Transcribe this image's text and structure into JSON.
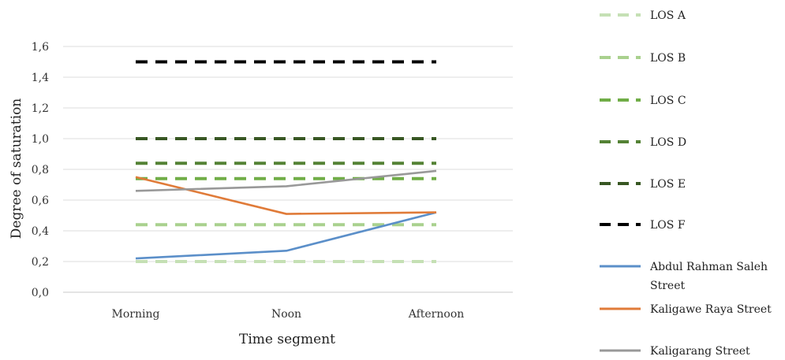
{
  "chart_data": {
    "type": "line",
    "title": "",
    "xlabel": "Time segment",
    "ylabel": "Degree of saturation",
    "categories": [
      "Morning",
      "Noon",
      "Afternoon"
    ],
    "ylim": [
      0,
      1.6
    ],
    "yticks": [
      "0,0",
      "0,2",
      "0,4",
      "0,6",
      "0,8",
      "1,0",
      "1,2",
      "1,4",
      "1,6"
    ],
    "grid": true,
    "legend_position": "right",
    "series": [
      {
        "name": "LOS A",
        "values": [
          0.2,
          0.2,
          0.2
        ],
        "color": "#c5e0b4",
        "style": "dashed"
      },
      {
        "name": "LOS B",
        "values": [
          0.44,
          0.44,
          0.44
        ],
        "color": "#a9d18e",
        "style": "dashed"
      },
      {
        "name": "LOS C",
        "values": [
          0.74,
          0.74,
          0.74
        ],
        "color": "#70ad47",
        "style": "dashed"
      },
      {
        "name": "LOS D",
        "values": [
          0.84,
          0.84,
          0.84
        ],
        "color": "#548235",
        "style": "dashed"
      },
      {
        "name": "LOS E",
        "values": [
          1.0,
          1.0,
          1.0
        ],
        "color": "#385723",
        "style": "dashed"
      },
      {
        "name": "LOS F",
        "values": [
          1.5,
          1.5,
          1.5
        ],
        "color": "#000000",
        "style": "dashed"
      },
      {
        "name": "Abdul Rahman Saleh Street",
        "values": [
          0.22,
          0.27,
          0.52
        ],
        "color": "#5b8fc9",
        "style": "solid"
      },
      {
        "name": "Kaligawe Raya Street",
        "values": [
          0.75,
          0.51,
          0.52
        ],
        "color": "#e07b39",
        "style": "solid"
      },
      {
        "name": "Kaligarang Street",
        "values": [
          0.66,
          0.69,
          0.79
        ],
        "color": "#999999",
        "style": "solid"
      }
    ]
  }
}
